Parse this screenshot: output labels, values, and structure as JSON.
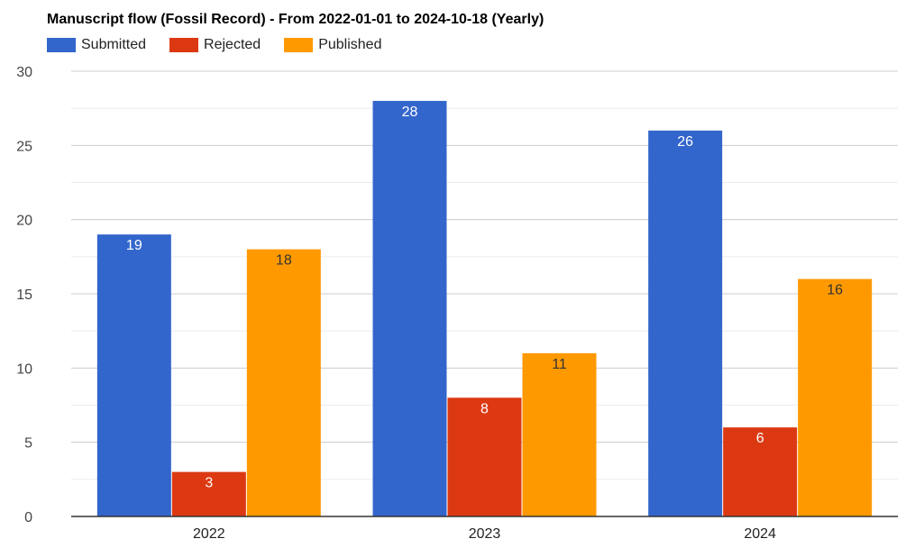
{
  "chart_data": {
    "type": "bar",
    "title": "Manuscript flow (Fossil Record) - From 2022-01-01 to 2024-10-18 (Yearly)",
    "categories": [
      "2022",
      "2023",
      "2024"
    ],
    "series": [
      {
        "name": "Submitted",
        "color": "#3366cc",
        "label_color": "#ffffff",
        "values": [
          19,
          28,
          26
        ]
      },
      {
        "name": "Rejected",
        "color": "#dc3912",
        "label_color": "#ffffff",
        "values": [
          3,
          8,
          6
        ]
      },
      {
        "name": "Published",
        "color": "#ff9900",
        "label_color": "#333333",
        "values": [
          18,
          11,
          16
        ]
      }
    ],
    "ylim": [
      0,
      30
    ],
    "yticks": [
      0,
      5,
      10,
      15,
      20,
      25,
      30
    ],
    "grid": true,
    "legend_position": "top-left",
    "xlabel": "",
    "ylabel": ""
  }
}
